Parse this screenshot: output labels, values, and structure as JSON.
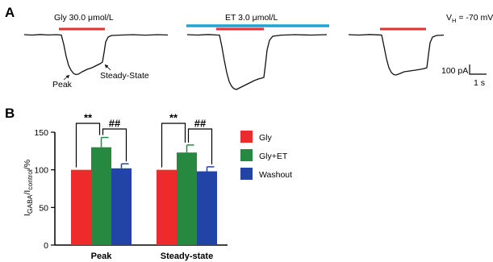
{
  "panel_a": {
    "letter": "A",
    "label_gly": "Gly 30.0 μmol/L",
    "label_et": "ET 3.0 μmol/L",
    "label_vh_prefix": "V",
    "label_vh_sub": "H",
    "label_vh_value": " = -70 mV",
    "label_peak": "Peak",
    "label_steady": "Steady-State",
    "scale_current": "100 pA",
    "scale_time": "1 s",
    "colors": {
      "gly_bar": "#e8312f",
      "et_bar": "#1fa3d0",
      "trace": "#111111"
    }
  },
  "chart_data": {
    "type": "bar",
    "panel_letter": "B",
    "categories": [
      "Peak",
      "Steady-state"
    ],
    "series": [
      {
        "name": "Gly",
        "color": "#ee2a2a",
        "values": [
          100,
          100
        ],
        "errors": [
          0,
          0
        ]
      },
      {
        "name": "Gly+ET",
        "color": "#27893f",
        "values": [
          130,
          123
        ],
        "errors": [
          13,
          10
        ]
      },
      {
        "name": "Washout",
        "color": "#2244a6",
        "values": [
          102,
          98
        ],
        "errors": [
          6,
          6
        ]
      }
    ],
    "ylabel_main": "I",
    "ylabel_sub1": "GABA",
    "ylabel_mid": "/I",
    "ylabel_sub2": "control",
    "ylabel_tail": "/%",
    "ylim": [
      0,
      150
    ],
    "yticks": [
      "0",
      "50",
      "100",
      "150"
    ],
    "grid": false,
    "legend_position": "right",
    "significance": [
      {
        "category": "Peak",
        "between": [
          "Gly",
          "Gly+ET"
        ],
        "mark": "**"
      },
      {
        "category": "Peak",
        "between": [
          "Gly+ET",
          "Washout"
        ],
        "mark": "##"
      },
      {
        "category": "Steady-state",
        "between": [
          "Gly",
          "Gly+ET"
        ],
        "mark": "**"
      },
      {
        "category": "Steady-state",
        "between": [
          "Gly+ET",
          "Washout"
        ],
        "mark": "##"
      }
    ]
  }
}
